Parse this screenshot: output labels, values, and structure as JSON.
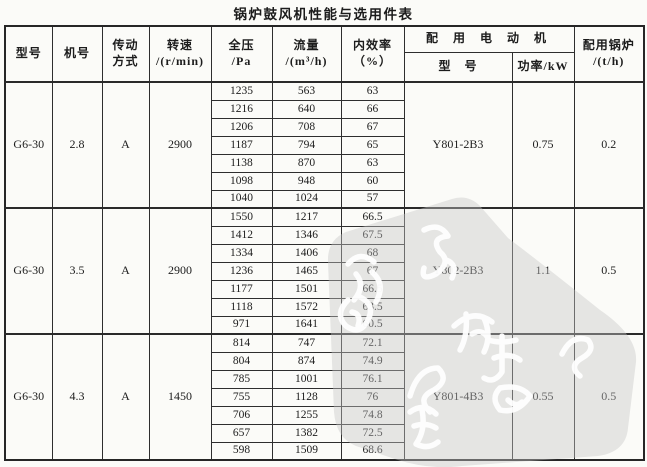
{
  "title": "锅炉鼓风机性能与选用件表",
  "table": {
    "headers": {
      "model": "型号",
      "machine_no": "机号",
      "drive": [
        "传动",
        "方式"
      ],
      "speed": [
        "转速",
        "/(r/min)"
      ],
      "pressure": [
        "全压",
        "/Pa"
      ],
      "flow": [
        "流量",
        "/(m³/h)"
      ],
      "efficiency": [
        "内效率",
        "（%）"
      ],
      "motor_group": "配 用 电 动 机",
      "motor_model": "型　号",
      "motor_power": "功率/kW",
      "boiler": [
        "配用锅炉",
        "/(t/h)"
      ]
    },
    "blocks": [
      {
        "model": "G6-30",
        "machine_no": "2.8",
        "drive": "A",
        "speed": "2900",
        "rows": [
          [
            "1235",
            "563",
            "63"
          ],
          [
            "1216",
            "640",
            "66"
          ],
          [
            "1206",
            "708",
            "67"
          ],
          [
            "1187",
            "794",
            "65"
          ],
          [
            "1138",
            "870",
            "63"
          ],
          [
            "1098",
            "948",
            "60"
          ],
          [
            "1040",
            "1024",
            "57"
          ]
        ],
        "motor_model": "Y801-2B3",
        "motor_power": "0.75",
        "boiler": "0.2"
      },
      {
        "model": "G6-30",
        "machine_no": "3.5",
        "drive": "A",
        "speed": "2900",
        "rows": [
          [
            "1550",
            "1217",
            "66.5"
          ],
          [
            "1412",
            "1346",
            "67.5"
          ],
          [
            "1334",
            "1406",
            "68"
          ],
          [
            "1236",
            "1465",
            "67"
          ],
          [
            "1177",
            "1501",
            "66.5"
          ],
          [
            "1118",
            "1572",
            "63.5"
          ],
          [
            "971",
            "1641",
            "60.5"
          ]
        ],
        "motor_model": "Y802-2B3",
        "motor_power": "1.1",
        "boiler": "0.5"
      },
      {
        "model": "G6-30",
        "machine_no": "4.3",
        "drive": "A",
        "speed": "1450",
        "rows": [
          [
            "814",
            "747",
            "72.1"
          ],
          [
            "804",
            "874",
            "74.9"
          ],
          [
            "785",
            "1001",
            "76.1"
          ],
          [
            "755",
            "1128",
            "76"
          ],
          [
            "706",
            "1255",
            "74.8"
          ],
          [
            "657",
            "1382",
            "72.5"
          ],
          [
            "598",
            "1509",
            "68.6"
          ]
        ],
        "motor_model": "Y801-4B3",
        "motor_power": "0.55",
        "boiler": "0.5"
      }
    ]
  },
  "colors": {
    "ink": "#1c1c1c",
    "line": "#2e2e2e",
    "paper": "#fbfbf8",
    "watermark_blob": "#c6c6c6",
    "watermark_glyph": "#ffffff"
  }
}
